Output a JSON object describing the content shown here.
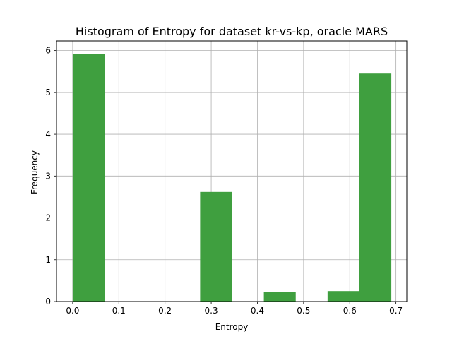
{
  "chart_data": {
    "type": "bar",
    "title": "Histogram of Entropy for dataset kr-vs-kp, oracle MARS",
    "xlabel": "Entropy",
    "ylabel": "Frequency",
    "xlim": [
      -0.035,
      0.7235
    ],
    "ylim": [
      0,
      6.23
    ],
    "xticks": [
      0.0,
      0.1,
      0.2,
      0.3,
      0.4,
      0.5,
      0.6,
      0.7
    ],
    "xtick_labels": [
      "0.0",
      "0.1",
      "0.2",
      "0.3",
      "0.4",
      "0.5",
      "0.6",
      "0.7"
    ],
    "yticks": [
      0,
      1,
      2,
      3,
      4,
      5,
      6
    ],
    "ytick_labels": [
      "0",
      "1",
      "2",
      "3",
      "4",
      "5",
      "6"
    ],
    "grid": true,
    "bar_color": "#3f9f3f",
    "bins": [
      {
        "x0": 0.0,
        "x1": 0.069,
        "value": 5.92
      },
      {
        "x0": 0.069,
        "x1": 0.138,
        "value": 0
      },
      {
        "x0": 0.138,
        "x1": 0.207,
        "value": 0
      },
      {
        "x0": 0.207,
        "x1": 0.276,
        "value": 0
      },
      {
        "x0": 0.276,
        "x1": 0.345,
        "value": 2.62
      },
      {
        "x0": 0.345,
        "x1": 0.414,
        "value": 0
      },
      {
        "x0": 0.414,
        "x1": 0.483,
        "value": 0.23
      },
      {
        "x0": 0.483,
        "x1": 0.552,
        "value": 0
      },
      {
        "x0": 0.552,
        "x1": 0.621,
        "value": 0.25
      },
      {
        "x0": 0.621,
        "x1": 0.69,
        "value": 5.45
      }
    ]
  }
}
